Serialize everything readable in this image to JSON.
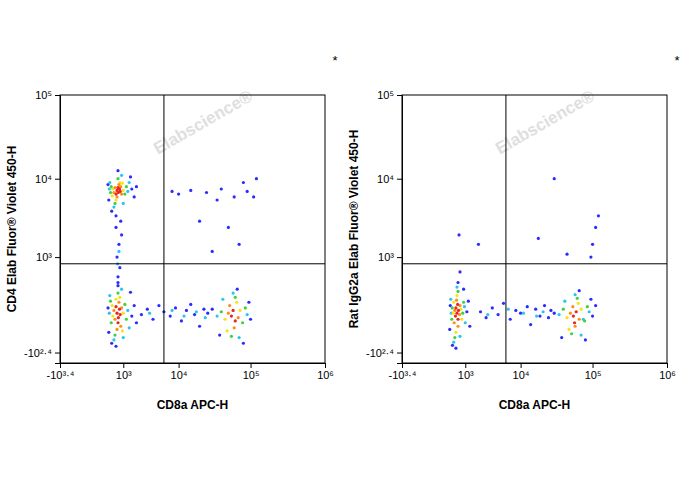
{
  "chart_data": [
    {
      "type": "scatter",
      "log": true,
      "x_label": "CD8a APC-H",
      "y_label": "CD4 Elab Fluor® Violet 450-H",
      "annotation": "*",
      "watermark": "Elabscience®",
      "xlim": [
        -2512,
        1000000
      ],
      "ylim": [
        -400,
        100000
      ],
      "xticks": [
        {
          "value": -2512,
          "label": "-10³·⁴"
        },
        {
          "value": 1000,
          "label": "10³"
        },
        {
          "value": 10000,
          "label": "10⁴"
        },
        {
          "value": 100000,
          "label": "10⁵"
        },
        {
          "value": 1000000,
          "label": "10⁶"
        }
      ],
      "yticks": [
        {
          "value": -251,
          "label": "-10²·⁴"
        },
        {
          "value": 1000,
          "label": "10³"
        },
        {
          "value": 10000,
          "label": "10⁴"
        },
        {
          "value": 100000,
          "label": "10⁵"
        }
      ],
      "quadrant": {
        "x": 6000,
        "y": 800
      },
      "series": [
        {
          "color": "#2b2bff",
          "x": [
            250,
            1600,
            1800,
            700,
            400,
            2000,
            280,
            1500,
            600,
            250,
            1600,
            1800,
            700,
            400,
            2000,
            280,
            1500,
            600,
            30000,
            100000,
            95000,
            80000,
            38000,
            66000,
            2500,
            3200,
            4000,
            5000,
            6000,
            7500,
            9000,
            11000,
            13000,
            15000,
            17000,
            20000,
            23000,
            26000,
            700,
            800,
            650,
            750,
            900,
            600,
            850,
            700,
            8000,
            10000,
            15000,
            25000,
            40000,
            60000,
            80000,
            90000,
            35000,
            120000,
            110000,
            20000,
            50000,
            30000,
            70000
          ],
          "values": [
            8500,
            7500,
            6000,
            12500,
            4000,
            8000,
            5500,
            10500,
            3500,
            100,
            40,
            120,
            350,
            -150,
            0,
            -60,
            260,
            -180,
            90,
            20,
            150,
            -150,
            -80,
            300,
            50,
            90,
            20,
            120,
            70,
            40,
            100,
            10,
            80,
            130,
            50,
            -20,
            90,
            60,
            500,
            700,
            1000,
            1500,
            2000,
            2500,
            3000,
            400,
            7000,
            6500,
            7200,
            6800,
            7500,
            6000,
            9000,
            7000,
            5500,
            10000,
            6000,
            3000,
            2500,
            1200,
            1500
          ]
        },
        {
          "color": "#29c4f0",
          "x": [
            300,
            1300,
            900,
            500,
            1400,
            320,
            1000,
            300,
            1300,
            900,
            500,
            1400,
            320,
            1000,
            35000,
            90000,
            70000,
            42000,
            58000,
            3500,
            8000,
            12000,
            18000,
            24000,
            750,
            680
          ],
          "values": [
            7500,
            7000,
            11000,
            4500,
            9000,
            9000,
            5000,
            60,
            80,
            300,
            -120,
            -30,
            220,
            -100,
            40,
            50,
            -100,
            180,
            250,
            60,
            80,
            40,
            70,
            30,
            1200,
            800
          ]
        },
        {
          "color": "#3fd13f",
          "x": [
            380,
            1100,
            700,
            550,
            1200,
            350,
            380,
            1100,
            700,
            550,
            1200,
            350,
            40000,
            78000,
            62000,
            55000,
            85000
          ],
          "values": [
            8000,
            6500,
            10000,
            5000,
            8000,
            6800,
            0,
            130,
            250,
            -80,
            20,
            160,
            70,
            0,
            200,
            -90,
            100
          ]
        },
        {
          "color": "#f5e21b",
          "x": [
            450,
            1000,
            800,
            600,
            950,
            420,
            450,
            1000,
            800,
            600,
            950,
            420,
            45000,
            72000,
            65000,
            48000
          ],
          "values": [
            7500,
            7200,
            9000,
            5500,
            8800,
            6200,
            40,
            60,
            200,
            180,
            -50,
            120,
            20,
            80,
            150,
            -50
          ]
        },
        {
          "color": "#ff8c1a",
          "x": [
            550,
            900,
            750,
            500,
            850,
            650,
            550,
            900,
            750,
            500,
            850,
            650,
            50000,
            68000,
            60000,
            52000
          ],
          "values": [
            7800,
            6500,
            8500,
            6800,
            8000,
            6000,
            20,
            100,
            150,
            80,
            -20,
            -40,
            60,
            30,
            -30,
            120
          ]
        },
        {
          "color": "#e8261a",
          "x": [
            650,
            720,
            780,
            600,
            700,
            820,
            650,
            720,
            780,
            600,
            700,
            820,
            55000,
            62000,
            58000
          ],
          "values": [
            7200,
            6800,
            7500,
            6500,
            7800,
            7000,
            60,
            30,
            90,
            110,
            0,
            50,
            40,
            10,
            80
          ]
        }
      ]
    },
    {
      "type": "scatter",
      "log": true,
      "x_label": "CD8a APC-H",
      "y_label": "Rat IgG2a Elab Fluor® Violet 450-H",
      "annotation": "*",
      "watermark": "Elabscience®",
      "xlim": [
        -2512,
        1000000
      ],
      "ylim": [
        -400,
        100000
      ],
      "xticks": [
        {
          "value": -2512,
          "label": "-10³·⁴"
        },
        {
          "value": 1000,
          "label": "10³"
        },
        {
          "value": 10000,
          "label": "10⁴"
        },
        {
          "value": 100000,
          "label": "10⁵"
        },
        {
          "value": 1000000,
          "label": "10⁶"
        }
      ],
      "yticks": [
        {
          "value": -251,
          "label": "-10²·⁴"
        },
        {
          "value": 1000,
          "label": "10³"
        },
        {
          "value": 10000,
          "label": "10⁴"
        },
        {
          "value": 100000,
          "label": "10⁵"
        }
      ],
      "quadrant": {
        "x": 6000,
        "y": 800
      },
      "series": [
        {
          "color": "#2b2bff",
          "x": [
            260,
            1100,
            1200,
            600,
            350,
            1300,
            240,
            900,
            500,
            30000,
            100000,
            95000,
            80000,
            38000,
            66000,
            110000,
            2200,
            2800,
            3600,
            4500,
            5500,
            7000,
            8500,
            10000,
            12500,
            14000,
            16500,
            19000,
            22000,
            25000,
            27000,
            650,
            2000,
            18000,
            45000,
            100000,
            110000,
            95000,
            120000,
            30000,
            700
          ],
          "values": [
            120,
            70,
            160,
            400,
            -170,
            -20,
            -40,
            300,
            -200,
            60,
            40,
            180,
            -120,
            -100,
            280,
            120,
            70,
            30,
            100,
            50,
            140,
            20,
            80,
            60,
            110,
            -10,
            90,
            40,
            120,
            30,
            80,
            2000,
            1500,
            1800,
            1100,
            1500,
            2500,
            1000,
            3500,
            10000,
            600
          ]
        },
        {
          "color": "#29c4f0",
          "x": [
            300,
            950,
            550,
            400,
            1000,
            280,
            700,
            35000,
            90000,
            70000,
            42000,
            58000,
            75000,
            3000,
            6500,
            11000,
            17000,
            21000
          ],
          "values": [
            60,
            110,
            330,
            -140,
            0,
            180,
            -90,
            50,
            70,
            -80,
            160,
            230,
            20,
            50,
            90,
            60,
            40,
            70
          ]
        },
        {
          "color": "#3fd13f",
          "x": [
            340,
            850,
            600,
            450,
            900,
            320,
            40000,
            78000,
            62000,
            52000,
            85000
          ],
          "values": [
            100,
            60,
            270,
            -100,
            150,
            20,
            90,
            10,
            190,
            -70,
            110
          ]
        },
        {
          "color": "#f5e21b",
          "x": [
            380,
            750,
            550,
            500,
            800,
            400,
            45000,
            70000,
            64000,
            48000
          ],
          "values": [
            60,
            90,
            220,
            -60,
            20,
            150,
            30,
            90,
            140,
            -40
          ]
        },
        {
          "color": "#ff8c1a",
          "x": [
            450,
            680,
            530,
            600,
            420,
            700,
            50000,
            66000,
            58000,
            54000
          ],
          "values": [
            80,
            50,
            170,
            -20,
            0,
            120,
            60,
            20,
            -20,
            110
          ]
        },
        {
          "color": "#e8261a",
          "x": [
            550,
            600,
            500,
            620,
            480,
            580,
            55000,
            60000,
            57000
          ],
          "values": [
            60,
            20,
            100,
            80,
            40,
            130,
            40,
            70,
            0
          ]
        }
      ]
    }
  ]
}
